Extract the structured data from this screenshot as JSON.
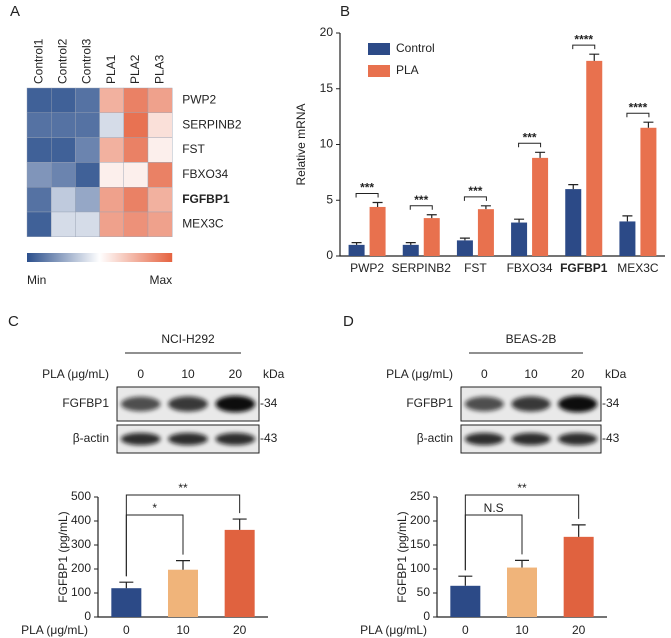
{
  "chart_data": [
    {
      "type": "heatmap",
      "panel": "A",
      "columns": [
        "Control1",
        "Control2",
        "Control3",
        "PLA1",
        "PLA2",
        "PLA3"
      ],
      "rows": [
        "PWP2",
        "SERPINB2",
        "FST",
        "FBXO34",
        "FGFBP1",
        "MEX3C"
      ],
      "values": [
        [
          0.05,
          0.05,
          0.1,
          0.75,
          0.9,
          0.8
        ],
        [
          0.1,
          0.1,
          0.1,
          0.4,
          0.95,
          0.6
        ],
        [
          0.05,
          0.05,
          0.15,
          0.75,
          0.9,
          0.55
        ],
        [
          0.2,
          0.15,
          0.05,
          0.55,
          0.55,
          0.9
        ],
        [
          0.1,
          0.35,
          0.25,
          0.8,
          0.9,
          0.75
        ],
        [
          0.05,
          0.4,
          0.4,
          0.8,
          0.85,
          0.8
        ]
      ],
      "colorbar": {
        "min_label": "Min",
        "max_label": "Max"
      },
      "low_color": "#2b4f8c",
      "mid_color": "#ffffff",
      "high_color": "#e5623f",
      "emphasis": "FGFBP1"
    },
    {
      "type": "bar",
      "panel": "B",
      "ylabel": "Relative mRNA",
      "categories": [
        "PWP2",
        "SERPINB2",
        "FST",
        "FBXO34",
        "FGFBP1",
        "MEX3C"
      ],
      "series": [
        {
          "name": "Control",
          "color": "#2c4a87",
          "values": [
            1.0,
            1.0,
            1.4,
            3.0,
            6.0,
            3.1
          ],
          "errors": [
            0.2,
            0.2,
            0.2,
            0.3,
            0.4,
            0.5
          ]
        },
        {
          "name": "PLA",
          "color": "#e8714e",
          "values": [
            4.4,
            3.4,
            4.2,
            8.8,
            17.5,
            11.5
          ],
          "errors": [
            0.4,
            0.3,
            0.3,
            0.5,
            0.6,
            0.5
          ]
        }
      ],
      "ylim": [
        0,
        20
      ],
      "yticks": [
        0,
        5,
        10,
        15,
        20
      ],
      "significance": [
        "***",
        "***",
        "***",
        "***",
        "****",
        "****"
      ],
      "emphasis": "FGFBP1",
      "legend": "upper left"
    },
    {
      "type": "bar",
      "panel": "C",
      "blot": {
        "title": "NCI-H292",
        "dose_label": "PLA (μg/mL)",
        "doses": [
          "0",
          "10",
          "20"
        ],
        "unit": "kDa",
        "proteins": [
          {
            "name": "FGFBP1",
            "marker": "-34"
          },
          {
            "name": "β-actin",
            "marker": "-43"
          }
        ]
      },
      "ylabel": "FGFBP1 (pg/mL)",
      "xlabel": "PLA (μg/mL)",
      "categories": [
        "0",
        "10",
        "20"
      ],
      "values": [
        120,
        197,
        363
      ],
      "errors": [
        25,
        38,
        45
      ],
      "colors": [
        "#2c4a87",
        "#f0b47a",
        "#e0623f"
      ],
      "ylim": [
        0,
        500
      ],
      "yticks": [
        0,
        100,
        200,
        300,
        400,
        500
      ],
      "comparisons": [
        {
          "between": [
            "0",
            "10"
          ],
          "label": "*"
        },
        {
          "between": [
            "0",
            "20"
          ],
          "label": "**"
        }
      ]
    },
    {
      "type": "bar",
      "panel": "D",
      "blot": {
        "title": "BEAS-2B",
        "dose_label": "PLA (μg/mL)",
        "doses": [
          "0",
          "10",
          "20"
        ],
        "unit": "kDa",
        "proteins": [
          {
            "name": "FGFBP1",
            "marker": "-34"
          },
          {
            "name": "β-actin",
            "marker": "-43"
          }
        ]
      },
      "ylabel": "FGFBP1 (pg/mL)",
      "xlabel": "PLA (μg/mL)",
      "categories": [
        "0",
        "10",
        "20"
      ],
      "values": [
        65,
        103,
        167
      ],
      "errors": [
        20,
        15,
        25
      ],
      "colors": [
        "#2c4a87",
        "#f0b47a",
        "#e0623f"
      ],
      "ylim": [
        0,
        250
      ],
      "yticks": [
        0,
        50,
        100,
        150,
        200,
        250
      ],
      "comparisons": [
        {
          "between": [
            "0",
            "10"
          ],
          "label": "N.S"
        },
        {
          "between": [
            "0",
            "20"
          ],
          "label": "**"
        }
      ]
    }
  ]
}
